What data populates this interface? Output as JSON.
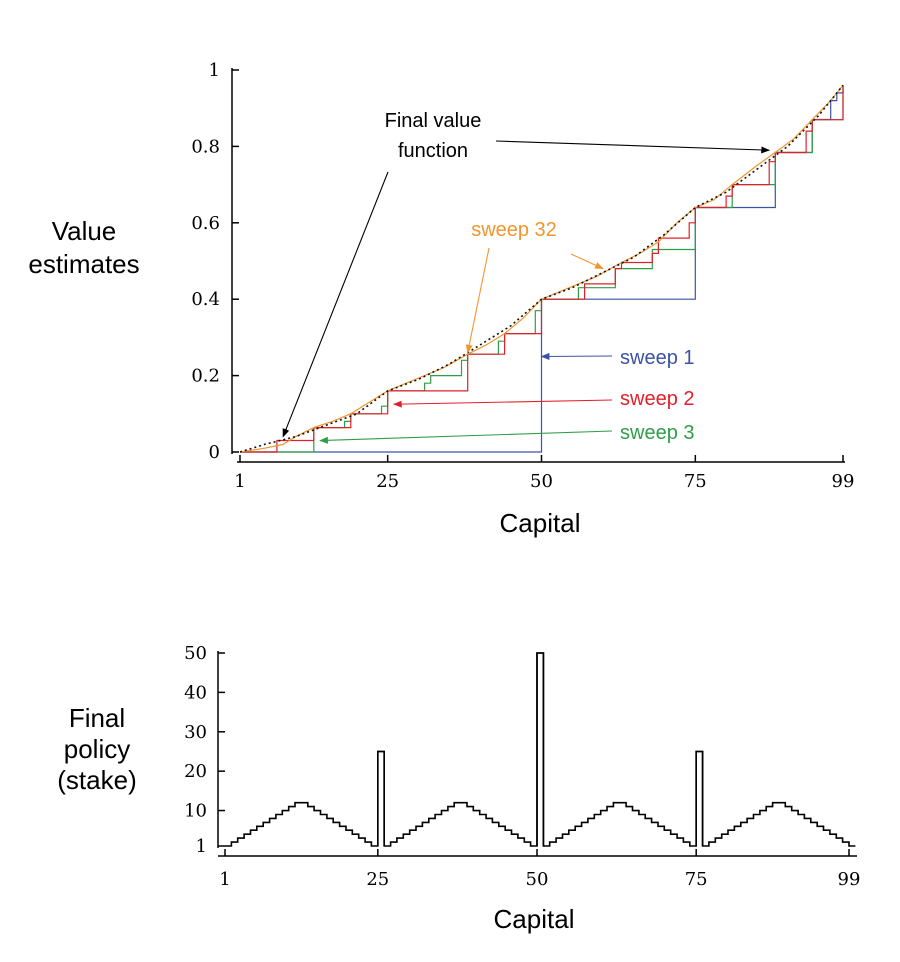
{
  "chart_data": [
    {
      "type": "line",
      "ylabel_lines": [
        "Value",
        "estimates"
      ],
      "xlabel": "Capital",
      "xlim": [
        1,
        99
      ],
      "ylim": [
        0,
        1
      ],
      "xticks": [
        {
          "value": 1,
          "label": "1"
        },
        {
          "value": 25,
          "label": "25"
        },
        {
          "value": 50,
          "label": "50"
        },
        {
          "value": 75,
          "label": "75"
        },
        {
          "value": 99,
          "label": "99"
        }
      ],
      "yticks": [
        {
          "value": 0,
          "label": "0"
        },
        {
          "value": 0.2,
          "label": "0.2"
        },
        {
          "value": 0.4,
          "label": "0.4"
        },
        {
          "value": 0.6,
          "label": "0.6"
        },
        {
          "value": 0.8,
          "label": "0.8"
        },
        {
          "value": 1,
          "label": "1"
        }
      ],
      "grid": false,
      "series": [
        {
          "name": "sweep 1",
          "color": "#3a53a4",
          "step": true,
          "points": [
            [
              1,
              0
            ],
            [
              49,
              0
            ],
            [
              50,
              0.4
            ],
            [
              74,
              0.4
            ],
            [
              75,
              0.64
            ],
            [
              87,
              0.64
            ],
            [
              88,
              0.784
            ],
            [
              93,
              0.784
            ],
            [
              94,
              0.8704
            ],
            [
              96,
              0.8704
            ],
            [
              97,
              0.92
            ],
            [
              98,
              0.94
            ],
            [
              99,
              0.96
            ]
          ]
        },
        {
          "name": "sweep 2",
          "color": "#e2202c",
          "step": true,
          "points": [
            [
              1,
              0
            ],
            [
              6,
              0
            ],
            [
              7,
              0.03
            ],
            [
              12,
              0.03
            ],
            [
              13,
              0.064
            ],
            [
              18,
              0.064
            ],
            [
              19,
              0.1
            ],
            [
              24,
              0.1
            ],
            [
              25,
              0.16
            ],
            [
              37,
              0.16
            ],
            [
              38,
              0.256
            ],
            [
              43,
              0.256
            ],
            [
              44,
              0.31
            ],
            [
              49,
              0.31
            ],
            [
              50,
              0.4
            ],
            [
              56,
              0.4
            ],
            [
              57,
              0.44
            ],
            [
              62,
              0.48
            ],
            [
              63,
              0.496
            ],
            [
              68,
              0.52
            ],
            [
              69,
              0.56
            ],
            [
              74,
              0.6
            ],
            [
              75,
              0.64
            ],
            [
              80,
              0.67
            ],
            [
              81,
              0.7
            ],
            [
              87,
              0.76
            ],
            [
              88,
              0.784
            ],
            [
              93,
              0.84
            ],
            [
              94,
              0.87
            ],
            [
              99,
              0.96
            ]
          ]
        },
        {
          "name": "sweep 3",
          "color": "#2e9e48",
          "step": true,
          "points": [
            [
              1,
              0
            ],
            [
              12,
              0
            ],
            [
              13,
              0.064
            ],
            [
              18,
              0.08
            ],
            [
              19,
              0.1
            ],
            [
              24,
              0.12
            ],
            [
              25,
              0.16
            ],
            [
              31,
              0.18
            ],
            [
              32,
              0.2
            ],
            [
              37,
              0.24
            ],
            [
              38,
              0.256
            ],
            [
              43,
              0.29
            ],
            [
              44,
              0.31
            ],
            [
              49,
              0.37
            ],
            [
              50,
              0.4
            ],
            [
              56,
              0.43
            ],
            [
              62,
              0.48
            ],
            [
              68,
              0.53
            ],
            [
              75,
              0.64
            ],
            [
              81,
              0.7
            ],
            [
              88,
              0.784
            ],
            [
              94,
              0.87
            ],
            [
              99,
              0.96
            ]
          ]
        },
        {
          "name": "sweep 32",
          "color": "#f0962e",
          "step": false,
          "points": [
            [
              1,
              0
            ],
            [
              5,
              0.01
            ],
            [
              8,
              0.02
            ],
            [
              10,
              0.04
            ],
            [
              13,
              0.064
            ],
            [
              16,
              0.08
            ],
            [
              19,
              0.1
            ],
            [
              22,
              0.13
            ],
            [
              25,
              0.16
            ],
            [
              28,
              0.18
            ],
            [
              31,
              0.2
            ],
            [
              34,
              0.22
            ],
            [
              38,
              0.256
            ],
            [
              41,
              0.28
            ],
            [
              44,
              0.31
            ],
            [
              47,
              0.35
            ],
            [
              50,
              0.4
            ],
            [
              53,
              0.42
            ],
            [
              56,
              0.44
            ],
            [
              59,
              0.46
            ],
            [
              63,
              0.496
            ],
            [
              66,
              0.52
            ],
            [
              69,
              0.55
            ],
            [
              72,
              0.6
            ],
            [
              75,
              0.64
            ],
            [
              78,
              0.66
            ],
            [
              81,
              0.7
            ],
            [
              85,
              0.75
            ],
            [
              88,
              0.784
            ],
            [
              91,
              0.82
            ],
            [
              94,
              0.87
            ],
            [
              97,
              0.92
            ],
            [
              99,
              0.96
            ]
          ]
        },
        {
          "name": "final",
          "color": "#111111",
          "step": false,
          "dotted": true,
          "points": [
            [
              1,
              0
            ],
            [
              5,
              0.02
            ],
            [
              10,
              0.04
            ],
            [
              15,
              0.07
            ],
            [
              20,
              0.1
            ],
            [
              25,
              0.16
            ],
            [
              30,
              0.19
            ],
            [
              35,
              0.23
            ],
            [
              40,
              0.28
            ],
            [
              45,
              0.33
            ],
            [
              50,
              0.4
            ],
            [
              55,
              0.43
            ],
            [
              60,
              0.47
            ],
            [
              65,
              0.51
            ],
            [
              70,
              0.57
            ],
            [
              75,
              0.64
            ],
            [
              80,
              0.68
            ],
            [
              85,
              0.74
            ],
            [
              90,
              0.8
            ],
            [
              95,
              0.88
            ],
            [
              99,
              0.96
            ]
          ]
        }
      ],
      "annotations": [
        {
          "lines": [
            "Final value",
            "function"
          ],
          "color": "#000000",
          "arrows": [
            {
              "to": [
                8,
                0.04
              ]
            },
            {
              "to": [
                87,
                0.79
              ]
            }
          ]
        },
        {
          "lines": [
            "sweep 32"
          ],
          "color": "#f0962e",
          "arrows": [
            {
              "to": [
                38,
                0.26
              ]
            },
            {
              "to": [
                60,
                0.48
              ]
            }
          ]
        },
        {
          "lines": [
            "sweep 1"
          ],
          "color": "#3a53a4",
          "arrows": [
            {
              "to": [
                50,
                0.25
              ]
            }
          ]
        },
        {
          "lines": [
            "sweep 2"
          ],
          "color": "#e2202c",
          "arrows": [
            {
              "to": [
                26,
                0.125
              ]
            }
          ]
        },
        {
          "lines": [
            "sweep 3"
          ],
          "color": "#2e9e48",
          "arrows": [
            {
              "to": [
                14,
                0.03
              ]
            }
          ]
        }
      ]
    },
    {
      "type": "bar",
      "step": true,
      "ylabel_lines": [
        "Final",
        "policy",
        "(stake)"
      ],
      "xlabel": "Capital",
      "xlim": [
        1,
        99
      ],
      "ylim": [
        1,
        50
      ],
      "xticks": [
        {
          "value": 1,
          "label": "1"
        },
        {
          "value": 25,
          "label": "25"
        },
        {
          "value": 50,
          "label": "50"
        },
        {
          "value": 75,
          "label": "75"
        },
        {
          "value": 99,
          "label": "99"
        }
      ],
      "yticks": [
        {
          "value": 1,
          "label": "1"
        },
        {
          "value": 10,
          "label": "10"
        },
        {
          "value": 20,
          "label": "20"
        },
        {
          "value": 30,
          "label": "30"
        },
        {
          "value": 40,
          "label": "40"
        },
        {
          "value": 50,
          "label": "50"
        }
      ],
      "grid": false,
      "series": [
        {
          "name": "stake",
          "color": "#000000",
          "x_start": 1,
          "values": [
            1,
            2,
            3,
            4,
            5,
            6,
            7,
            8,
            9,
            10,
            11,
            12,
            12,
            11,
            10,
            9,
            8,
            7,
            6,
            5,
            4,
            3,
            2,
            1,
            25,
            1,
            2,
            3,
            4,
            5,
            6,
            7,
            8,
            9,
            10,
            11,
            12,
            12,
            11,
            10,
            9,
            8,
            7,
            6,
            5,
            4,
            3,
            2,
            1,
            50,
            1,
            2,
            3,
            4,
            5,
            6,
            7,
            8,
            9,
            10,
            11,
            12,
            12,
            11,
            10,
            9,
            8,
            7,
            6,
            5,
            4,
            3,
            2,
            1,
            25,
            1,
            2,
            3,
            4,
            5,
            6,
            7,
            8,
            9,
            10,
            11,
            12,
            12,
            11,
            10,
            9,
            8,
            7,
            6,
            5,
            4,
            3,
            2,
            1
          ]
        }
      ]
    }
  ]
}
